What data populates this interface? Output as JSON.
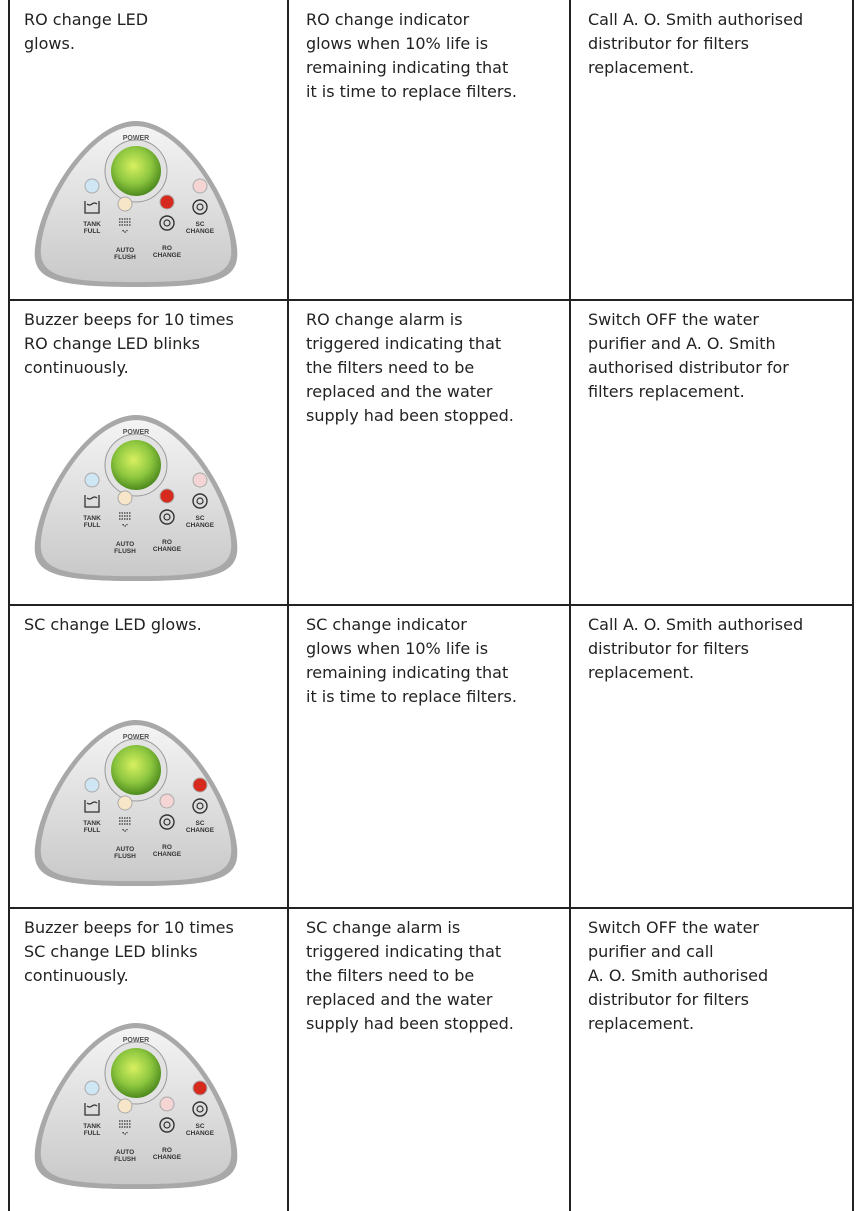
{
  "rows": [
    {
      "symptom": [
        "RO change LED",
        "glows."
      ],
      "cause": [
        "RO change indicator",
        "glows when 10% life is",
        "remaining indicating that",
        "it is time to replace filters."
      ],
      "action": [
        "Call A. O. Smith authorised",
        "distributor for filters",
        "replacement."
      ]
    },
    {
      "symptom": [
        "Buzzer beeps for 10 times",
        "RO change LED blinks",
        "continuously."
      ],
      "cause": [
        "RO change alarm is",
        "triggered indicating that",
        "the filters need to be",
        "replaced and the water",
        "supply had been stopped."
      ],
      "action": [
        "Switch OFF the water",
        "purifier and A. O. Smith",
        "authorised distributor for",
        "filters replacement."
      ]
    },
    {
      "symptom": [
        "SC change LED glows."
      ],
      "cause": [
        "SC change indicator",
        "glows when 10% life is",
        "remaining indicating that",
        "it is time to replace filters."
      ],
      "action": [
        "Call A. O. Smith authorised",
        "distributor for filters",
        "replacement."
      ]
    },
    {
      "symptom": [
        "Buzzer beeps for 10 times",
        "SC change LED blinks",
        "continuously."
      ],
      "cause": [
        "SC change alarm is",
        "triggered indicating that",
        "the filters need to be",
        "replaced and the water",
        "supply had been stopped."
      ],
      "action": [
        "Switch OFF the water",
        "purifier and call",
        "A. O. Smith authorised",
        "distributor for filters",
        "replacement."
      ]
    }
  ],
  "panel": {
    "power": "POWER",
    "labels": [
      [
        "TANK",
        "FULL"
      ],
      [
        "AUTO",
        "FLUSH"
      ],
      [
        "RO",
        "CHANGE"
      ],
      [
        "SC",
        "CHANGE"
      ]
    ]
  }
}
